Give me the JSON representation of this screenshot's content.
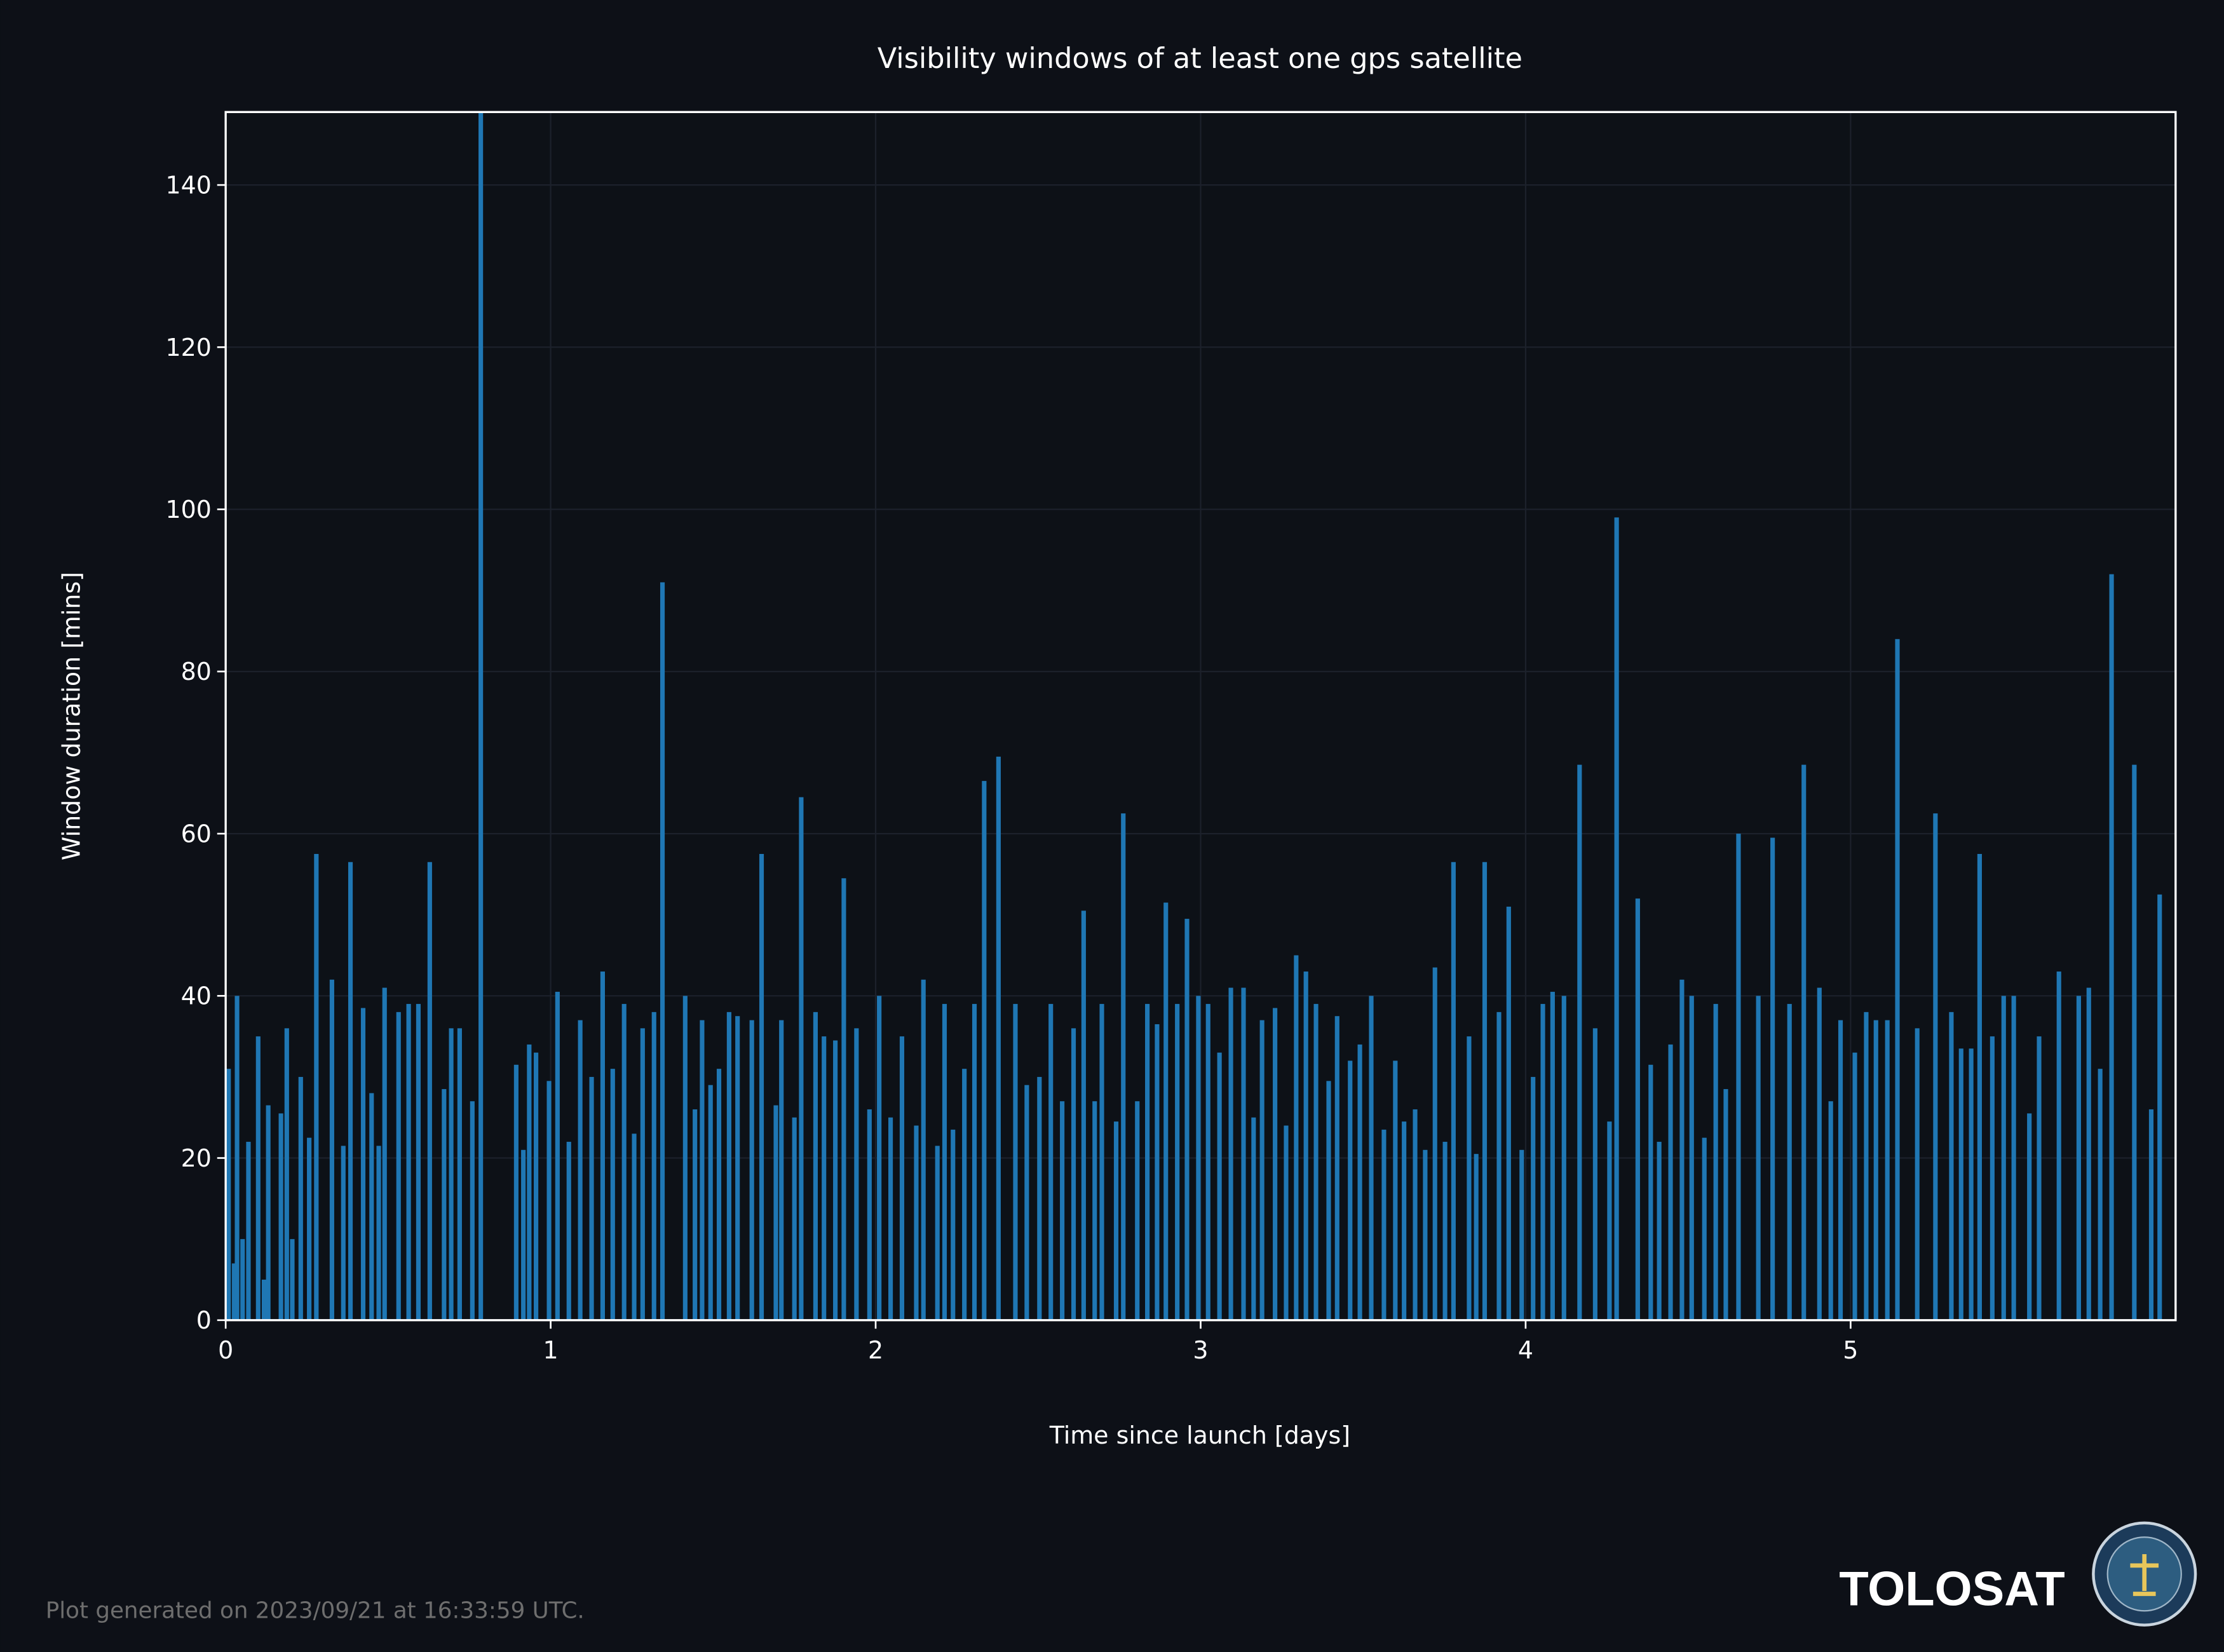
{
  "chart_data": {
    "type": "bar",
    "title": "Visibility windows of at least one gps satellite",
    "xlabel": "Time since launch [days]",
    "ylabel": "Window duration [mins]",
    "color": "#1f77b4",
    "grid": true,
    "xlim": [
      0,
      6
    ],
    "ylim": [
      0,
      149
    ],
    "xticks": [
      0,
      1,
      2,
      3,
      4,
      5
    ],
    "yticks": [
      0,
      20,
      40,
      60,
      80,
      100,
      120,
      140
    ],
    "x": [
      0.009,
      0.026,
      0.035,
      0.052,
      0.07,
      0.1,
      0.118,
      0.131,
      0.17,
      0.188,
      0.205,
      0.231,
      0.257,
      0.279,
      0.327,
      0.362,
      0.384,
      0.423,
      0.449,
      0.471,
      0.489,
      0.532,
      0.563,
      0.593,
      0.628,
      0.672,
      0.694,
      0.72,
      0.759,
      0.785,
      0.894,
      0.916,
      0.934,
      0.955,
      0.995,
      1.021,
      1.056,
      1.091,
      1.126,
      1.16,
      1.191,
      1.226,
      1.257,
      1.283,
      1.318,
      1.344,
      1.414,
      1.444,
      1.466,
      1.492,
      1.518,
      1.549,
      1.575,
      1.619,
      1.649,
      1.693,
      1.71,
      1.75,
      1.771,
      1.815,
      1.841,
      1.876,
      1.902,
      1.941,
      1.981,
      2.011,
      2.046,
      2.081,
      2.125,
      2.147,
      2.19,
      2.212,
      2.238,
      2.273,
      2.304,
      2.334,
      2.378,
      2.43,
      2.465,
      2.504,
      2.539,
      2.574,
      2.609,
      2.64,
      2.674,
      2.696,
      2.74,
      2.762,
      2.805,
      2.836,
      2.866,
      2.893,
      2.928,
      2.958,
      2.993,
      3.023,
      3.058,
      3.093,
      3.132,
      3.163,
      3.189,
      3.229,
      3.263,
      3.294,
      3.324,
      3.355,
      3.394,
      3.42,
      3.46,
      3.49,
      3.525,
      3.564,
      3.599,
      3.626,
      3.66,
      3.691,
      3.721,
      3.752,
      3.778,
      3.826,
      3.848,
      3.874,
      3.918,
      3.948,
      3.988,
      4.023,
      4.053,
      4.083,
      4.118,
      4.166,
      4.214,
      4.258,
      4.28,
      4.345,
      4.385,
      4.411,
      4.446,
      4.481,
      4.511,
      4.55,
      4.585,
      4.616,
      4.655,
      4.716,
      4.76,
      4.812,
      4.856,
      4.904,
      4.939,
      4.969,
      5.013,
      5.048,
      5.078,
      5.113,
      5.144,
      5.205,
      5.261,
      5.31,
      5.34,
      5.371,
      5.397,
      5.436,
      5.471,
      5.502,
      5.55,
      5.58,
      5.641,
      5.702,
      5.733,
      5.768,
      5.803,
      5.873,
      5.925,
      5.951
    ],
    "values": [
      31,
      7,
      40,
      10,
      22,
      35,
      5,
      26.5,
      25.5,
      36,
      10,
      30,
      22.5,
      57.5,
      42,
      21.5,
      56.5,
      38.5,
      28,
      21.5,
      41,
      38,
      39,
      39,
      56.5,
      28.5,
      36,
      36,
      27,
      149,
      31.5,
      21,
      34,
      33,
      29.5,
      40.5,
      22,
      37,
      30,
      43,
      31,
      39,
      23,
      36,
      38,
      91,
      40,
      26,
      37,
      29,
      31,
      38,
      37.5,
      37,
      57.5,
      26.5,
      37,
      25,
      64.5,
      38,
      35,
      34.5,
      54.5,
      36,
      26,
      40,
      25,
      35,
      24,
      42,
      21.5,
      39,
      23.5,
      31,
      39,
      66.5,
      69.5,
      39,
      29,
      30,
      39,
      27,
      36,
      50.5,
      27,
      39,
      24.5,
      62.5,
      27,
      39,
      36.5,
      51.5,
      39,
      49.5,
      40,
      39,
      33,
      41,
      41,
      25,
      37,
      38.5,
      24,
      45,
      43,
      39,
      29.5,
      37.5,
      32,
      34,
      40,
      23.5,
      32,
      24.5,
      26,
      21,
      43.5,
      22,
      56.5,
      35,
      20.5,
      56.5,
      38,
      51,
      21,
      30,
      39,
      40.5,
      40,
      68.5,
      36,
      24.5,
      99,
      52,
      31.5,
      22,
      34,
      42,
      40,
      22.5,
      39,
      28.5,
      60,
      40,
      59.5,
      39,
      68.5,
      41,
      27,
      37,
      33,
      38,
      37,
      37,
      84,
      36,
      62.5,
      38,
      33.5,
      33.5,
      57.5,
      35,
      40,
      40,
      25.5,
      35,
      43,
      40,
      41,
      31,
      92,
      68.5,
      26,
      52.5
    ]
  },
  "footer": {
    "note": "Plot generated on 2023/09/21 at 16:33:59 UTC.",
    "brand": "TOLOSAT"
  }
}
